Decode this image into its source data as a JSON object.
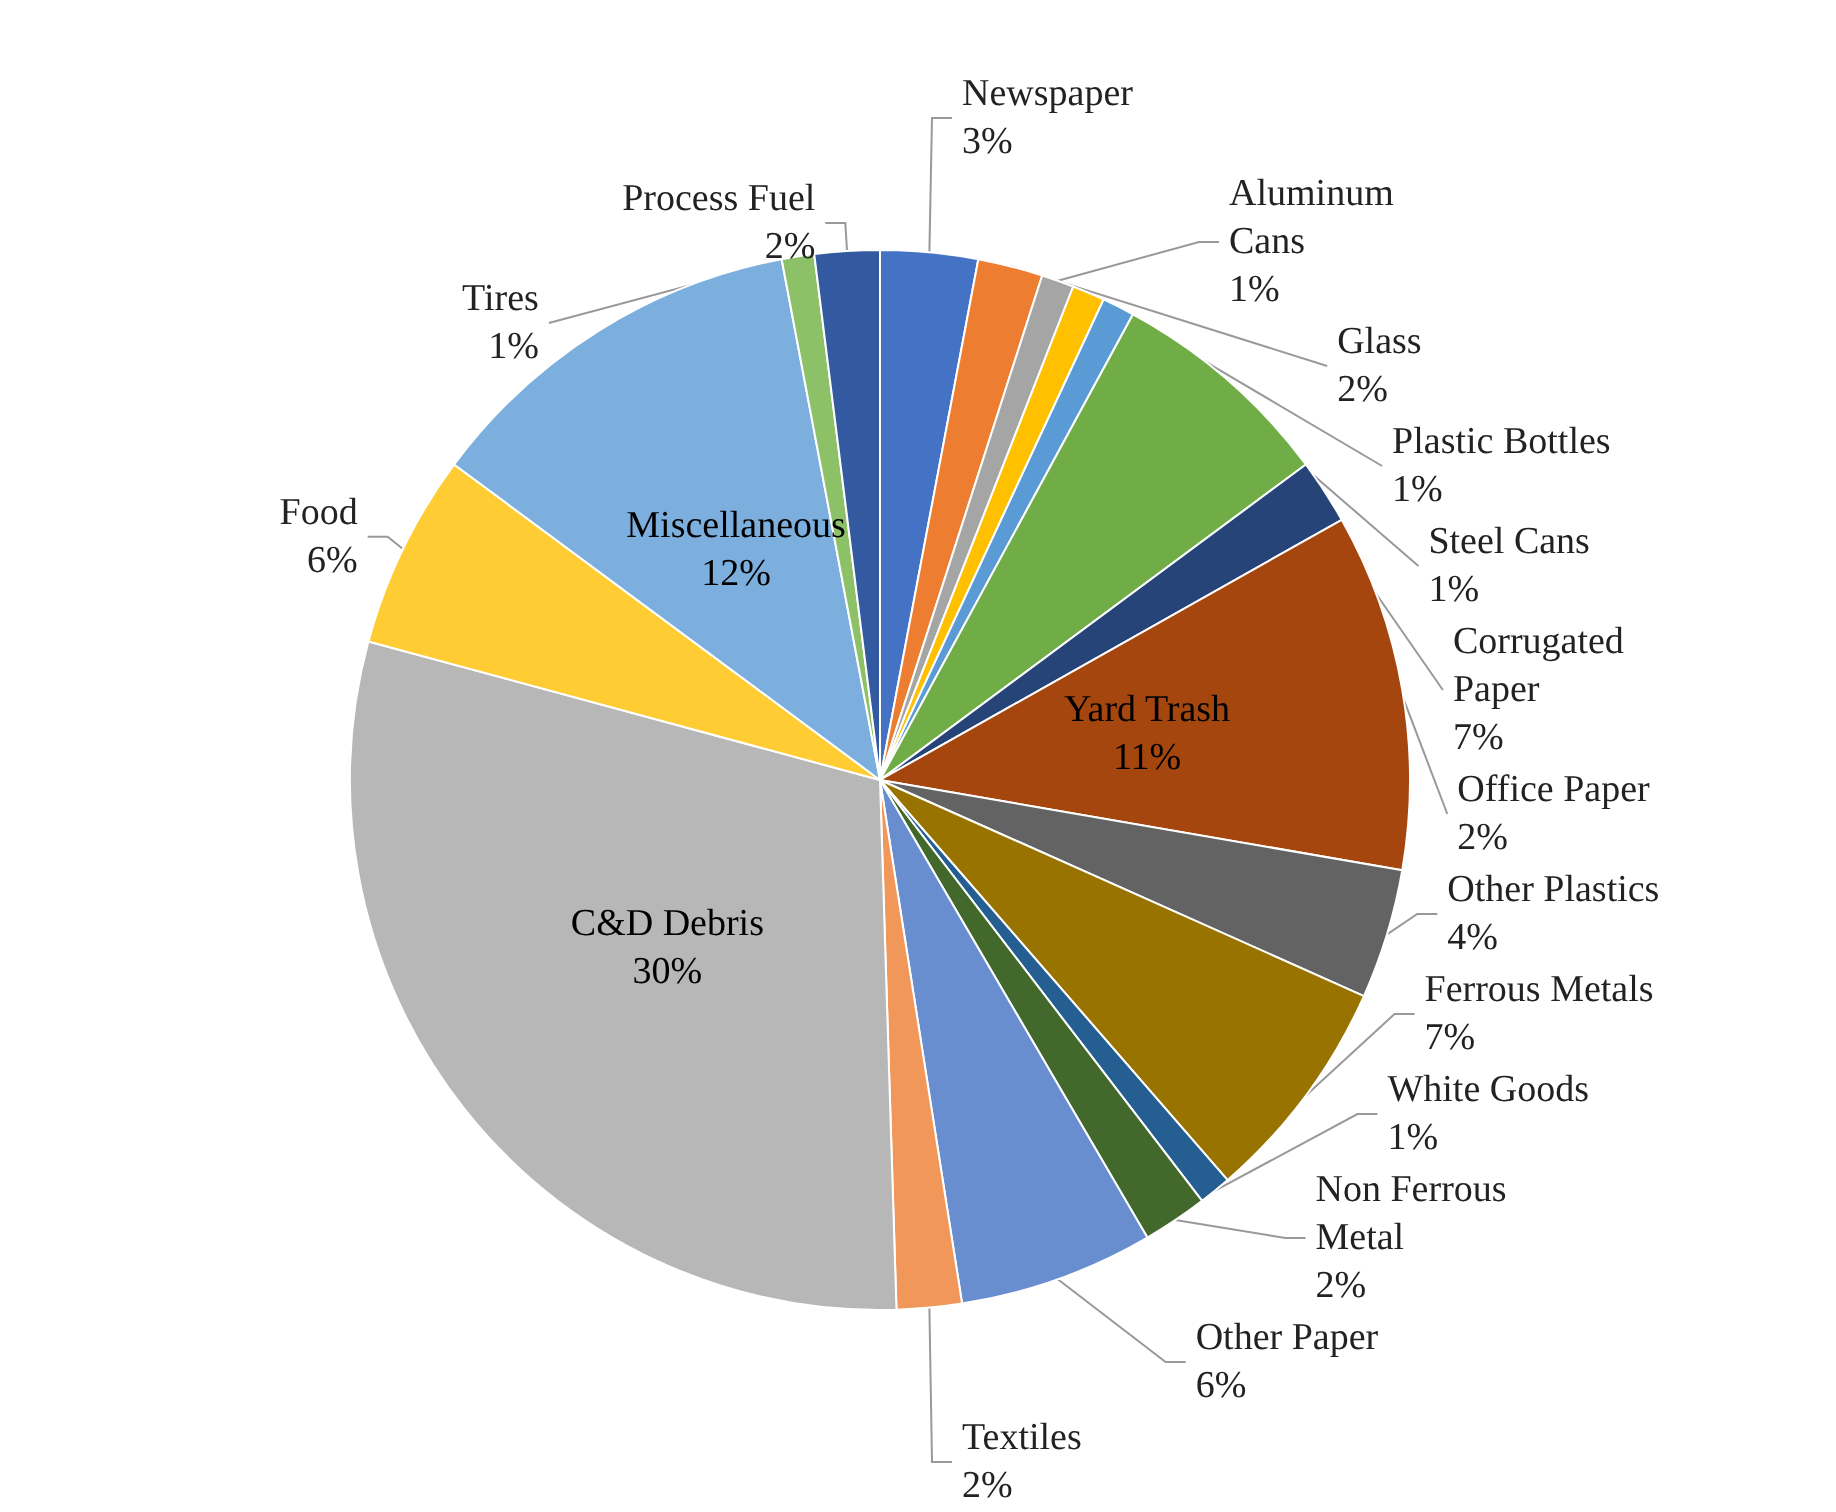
{
  "chart_data": {
    "type": "pie",
    "categories": [
      "Newspaper",
      "Glass",
      "Aluminum Cans",
      "Plastic Bottles",
      "Steel Cans",
      "Corrugated Paper",
      "Office Paper",
      "Yard Trash",
      "Other Plastics",
      "Ferrous Metals",
      "White Goods",
      "Non Ferrous Metal",
      "Other Paper",
      "Textiles",
      "C&D Debris",
      "Food",
      "Miscellaneous",
      "Tires",
      "Process Fuel"
    ],
    "values": [
      3,
      2,
      1,
      1,
      1,
      7,
      2,
      11,
      4,
      7,
      1,
      2,
      6,
      2,
      30,
      6,
      12,
      1,
      2
    ],
    "value_labels": [
      "3%",
      "2%",
      "1%",
      "1%",
      "1%",
      "7%",
      "2%",
      "11%",
      "4%",
      "7%",
      "1%",
      "2%",
      "6%",
      "2%",
      "30%",
      "6%",
      "12%",
      "1%",
      "2%"
    ],
    "colors": [
      "#4472c4",
      "#ed7d31",
      "#a5a5a5",
      "#ffc000",
      "#5b9bd5",
      "#70ad47",
      "#264478",
      "#a5460f",
      "#636363",
      "#997300",
      "#255e91",
      "#43682b",
      "#698ed0",
      "#f1975a",
      "#b7b7b7",
      "#ffcd33",
      "#7cafdd",
      "#8cc168",
      "#335aa1"
    ],
    "legend": false
  }
}
